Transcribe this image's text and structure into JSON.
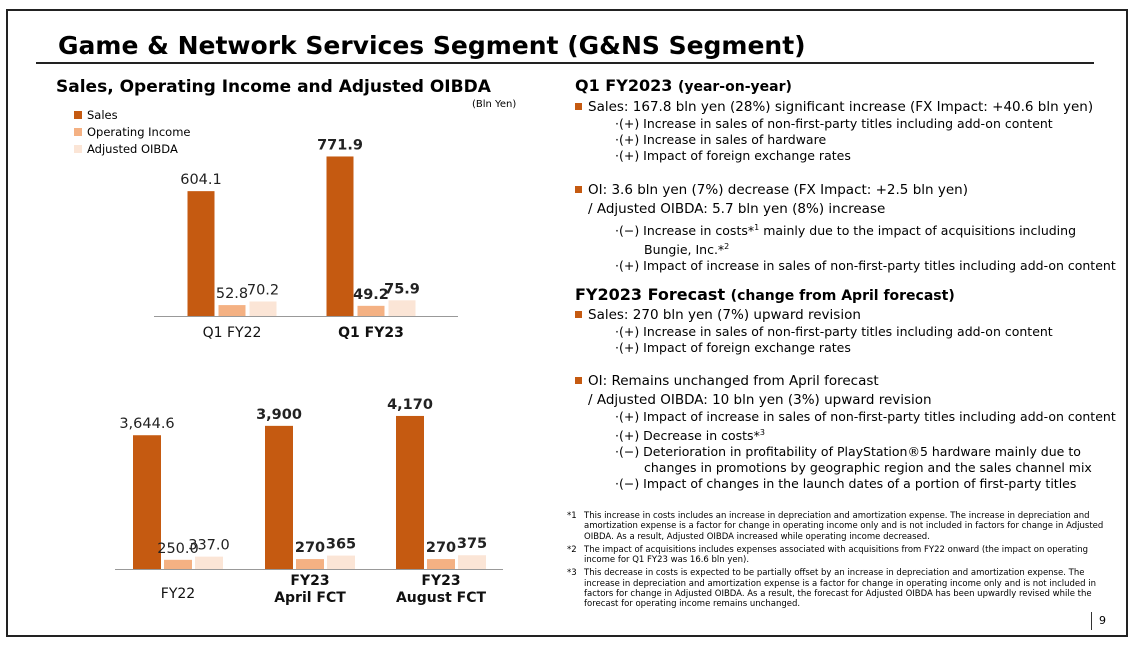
{
  "title": "Game & Network Services Segment (G&NS Segment)",
  "subtitle": "Sales, Operating Income and Adjusted OIBDA",
  "unit": "(Bln Yen)",
  "colors": {
    "sales": "#c55a11",
    "oi": "#f4b183",
    "oibda": "#fbe5d6",
    "accent": "#c55a11"
  },
  "legend": [
    "Sales",
    "Operating Income",
    "Adjusted OIBDA"
  ],
  "chart_data": [
    {
      "type": "bar",
      "categories": [
        "Q1 FY22",
        "Q1 FY23"
      ],
      "series": [
        {
          "name": "Sales",
          "values": [
            604.1,
            771.9
          ],
          "labels": [
            "604.1",
            "771.9"
          ]
        },
        {
          "name": "Operating Income",
          "values": [
            52.8,
            49.2
          ],
          "labels": [
            "52.8",
            "49.2"
          ]
        },
        {
          "name": "Adjusted OIBDA",
          "values": [
            70.2,
            75.9
          ],
          "labels": [
            "70.2",
            "75.9"
          ]
        }
      ],
      "bold_categories": [
        false,
        true
      ],
      "ylim": [
        0,
        900
      ]
    },
    {
      "type": "bar",
      "categories": [
        "FY22",
        "FY23\nApril FCT",
        "FY23\nAugust FCT"
      ],
      "series": [
        {
          "name": "Sales",
          "values": [
            3644.6,
            3900,
            4170
          ],
          "labels": [
            "3,644.6",
            "3,900",
            "4,170"
          ]
        },
        {
          "name": "Operating Income",
          "values": [
            250.0,
            270,
            270
          ],
          "labels": [
            "250.0",
            "270",
            "270"
          ]
        },
        {
          "name": "Adjusted OIBDA",
          "values": [
            337.0,
            365,
            375
          ],
          "labels": [
            "337.0",
            "365",
            "375"
          ]
        }
      ],
      "bold_categories": [
        false,
        true,
        true
      ],
      "ylim": [
        0,
        4550
      ]
    }
  ],
  "q1": {
    "heading": "Q1 FY2023",
    "heading_paren": "(year-on-year)",
    "sales": "Sales: 167.8 bln yen (28%) significant increase (FX Impact: +40.6 bln yen)",
    "sales_items": [
      "·(+) Increase in sales of non-first-party titles including add-on content",
      "·(+) Increase in sales of hardware",
      "·(+) Impact of foreign exchange rates"
    ],
    "oi": "OI:  3.6 bln yen (7%) decrease (FX Impact: +2.5 bln yen)",
    "oi_cont": "/ Adjusted OIBDA: 5.7 bln yen (8%) increase",
    "oi_item1_a": "·(−) Increase in costs*",
    "oi_item1_sup": "1",
    "oi_item1_b": " mainly due to the impact of acquisitions including",
    "oi_item1_c": "Bungie, Inc.*",
    "oi_item1_c_sup": "2",
    "oi_item2": "·(+) Impact of increase in sales of non-first-party titles including add-on content"
  },
  "fy": {
    "heading": "FY2023 Forecast",
    "heading_paren": "(change from April forecast)",
    "sales": "Sales: 270 bln yen (7%) upward revision",
    "sales_items": [
      "·(+) Increase in sales of non-first-party titles including add-on content",
      "·(+) Impact of foreign exchange rates"
    ],
    "oi": "OI: Remains unchanged from April forecast",
    "oi_cont": "/ Adjusted OIBDA: 10 bln yen (3%) upward revision",
    "oi_item1": "·(+) Impact of increase in sales of non-first-party titles including add-on content",
    "oi_item2_a": "·(+) Decrease in costs*",
    "oi_item2_sup": "3",
    "oi_item3": "·(−) Deterioration in profitability of PlayStation®5 hardware mainly due to",
    "oi_item3_cont": "changes in promotions by geographic region and the sales channel mix",
    "oi_item4": "·(−) Impact of changes in the launch dates of a portion of first-party titles"
  },
  "footnotes": [
    {
      "mark": "*1",
      "text": "This increase in costs includes an increase in depreciation and amortization expense. The increase in depreciation and amortization expense is a factor for change in operating income only and is not included in factors for change in Adjusted OIBDA. As a result, Adjusted OIBDA increased while operating income decreased."
    },
    {
      "mark": "*2",
      "text": "The impact of acquisitions includes expenses associated with acquisitions from FY22 onward (the impact on operating income for Q1 FY23 was 16.6 bln yen)."
    },
    {
      "mark": "*3",
      "text": "This decrease in costs is expected to be partially offset by an increase in depreciation and amortization expense. The increase in depreciation and amortization expense is a factor for change in operating income only and is not included in factors for change in Adjusted OIBDA. As a result, the forecast for Adjusted OIBDA has been upwardly revised while the forecast for operating income remains unchanged."
    }
  ],
  "page_number": "9"
}
